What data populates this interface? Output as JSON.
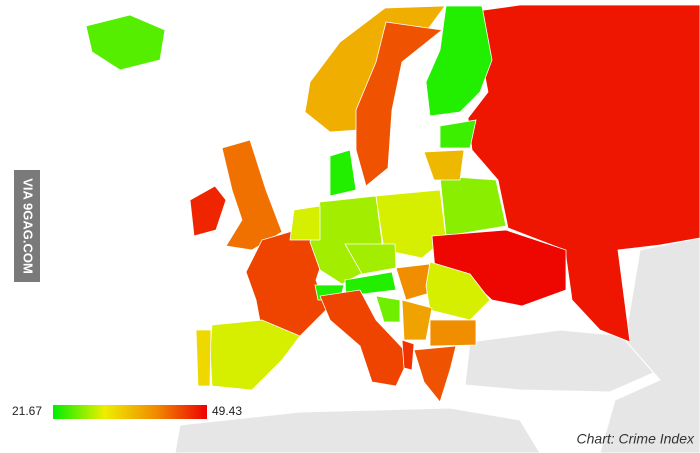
{
  "watermark": "VIA 9GAG.COM",
  "caption": "Chart: Crime Index",
  "legend": {
    "min": 21.67,
    "max": 49.43,
    "colors": [
      "#00ee00",
      "#eeee00",
      "#f08c00",
      "#ee0000"
    ]
  },
  "regions": [
    48,
    23,
    37,
    44,
    25,
    47,
    42,
    45,
    30,
    33,
    28,
    30,
    27,
    49,
    36,
    24,
    23,
    30,
    28,
    23,
    40,
    30,
    23,
    45,
    38,
    26,
    40,
    44,
    46
  ]
}
